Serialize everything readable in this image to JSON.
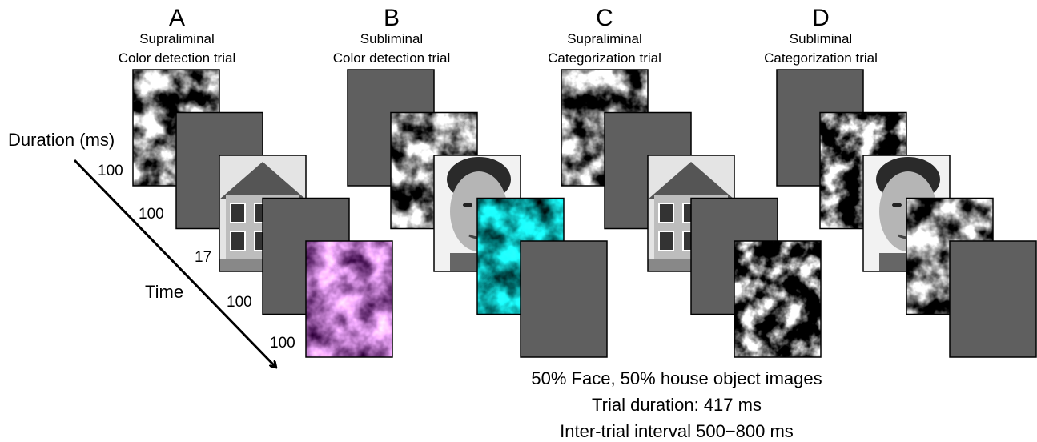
{
  "panels": [
    {
      "letter": "A",
      "lines": [
        "Supraliminal",
        "Color detection trial"
      ]
    },
    {
      "letter": "B",
      "lines": [
        "Subliminal",
        "Color detection trial"
      ]
    },
    {
      "letter": "C",
      "lines": [
        "Supraliminal",
        "Categorization trial"
      ]
    },
    {
      "letter": "D",
      "lines": [
        "Subliminal",
        "Categorization trial"
      ]
    }
  ],
  "axis": {
    "duration_label": "Duration (ms)",
    "time_label": "Time",
    "durations": [
      100,
      100,
      17,
      100,
      100
    ]
  },
  "footer": [
    "50% Face, 50% house object images",
    "Trial duration: 417 ms",
    "Inter-trial interval 500−800 ms"
  ]
}
